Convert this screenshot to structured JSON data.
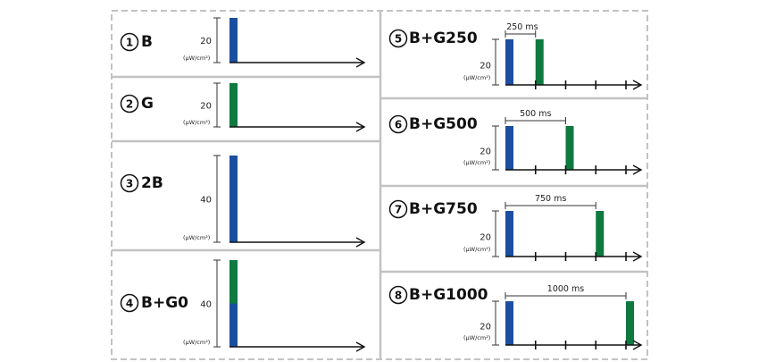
{
  "colors": {
    "blue": "#1b4ea0",
    "green": "#0e7a40",
    "frame": "#c2c2c2",
    "axis": "#111111"
  },
  "unit": "(μW/cm²)",
  "panels": [
    {
      "number": "1",
      "label": "B",
      "scale_label": "20",
      "pulses": [
        {
          "color": "blue",
          "level": 1
        }
      ]
    },
    {
      "number": "2",
      "label": "G",
      "scale_label": "20",
      "pulses": [
        {
          "color": "green",
          "level": 1
        }
      ]
    },
    {
      "number": "3",
      "label": "2B",
      "scale_label": "40",
      "pulses": [
        {
          "color": "blue",
          "level": 2
        }
      ]
    },
    {
      "number": "4",
      "label": "B+G0",
      "scale_label": "40",
      "pulses": [
        {
          "color": "blue",
          "level": 1
        },
        {
          "color": "green",
          "level": 1,
          "stacked": true
        }
      ]
    },
    {
      "number": "5",
      "label": "B+G250",
      "scale_label": "20",
      "interval_label": "250 ms",
      "delay_ms": 250,
      "pulses": [
        {
          "color": "blue",
          "level": 1
        },
        {
          "color": "green",
          "level": 1
        }
      ]
    },
    {
      "number": "6",
      "label": "B+G500",
      "scale_label": "20",
      "interval_label": "500 ms",
      "delay_ms": 500,
      "pulses": [
        {
          "color": "blue",
          "level": 1
        },
        {
          "color": "green",
          "level": 1
        }
      ]
    },
    {
      "number": "7",
      "label": "B+G750",
      "scale_label": "20",
      "interval_label": "750 ms",
      "delay_ms": 750,
      "pulses": [
        {
          "color": "blue",
          "level": 1
        },
        {
          "color": "green",
          "level": 1
        }
      ]
    },
    {
      "number": "8",
      "label": "B+G1000",
      "scale_label": "20",
      "interval_label": "1000 ms",
      "delay_ms": 1000,
      "pulses": [
        {
          "color": "blue",
          "level": 1
        },
        {
          "color": "green",
          "level": 1
        }
      ]
    }
  ]
}
